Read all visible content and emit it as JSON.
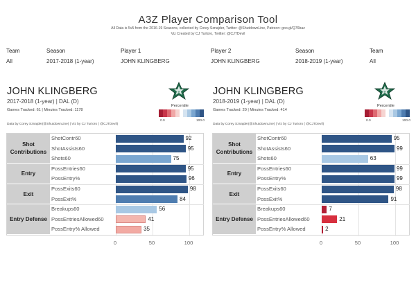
{
  "title": "A3Z Player Comparison Tool",
  "subtitle_line1": "All Data is 5v5 from the 2016-19 Seasons, collected by Corey Sznajder, Twitter: @ShutdownLine, Patreon: goo.gl/Q76baz",
  "subtitle_line2": "Viz Created by CJ Turtoro, Twitter: @CJTDevil",
  "filters": [
    {
      "label": "Team",
      "value": "All"
    },
    {
      "label": "Season",
      "value": "2017-2018 (1-year)"
    },
    {
      "label": "Player 1",
      "value": "JOHN KLINGBERG"
    },
    {
      "label": "Player 2",
      "value": "JOHN KLINGBERG"
    },
    {
      "label": "Season",
      "value": "2018-2019 (1-year)"
    },
    {
      "label": "Team",
      "value": "All"
    }
  ],
  "legend": {
    "title": "Percentile",
    "min_label": "0.0",
    "max_label": "100.0"
  },
  "colors": {
    "bar_high": "#2f5586",
    "bar_mid_high": "#5a8cc0",
    "bar_light": "#a8c8e4",
    "bar_low_pink": "#f2aaa3",
    "bar_very_low": "#c0273a",
    "bar_low_red": "#d7303f",
    "group_bg": "#cfcfcf",
    "logo_green": "#1f6b4a"
  },
  "panels": [
    {
      "player": "JOHN KLINGBERG",
      "season_line": "2017-2018 (1-year) | DAL (D)",
      "games_line": "Games Tracked: 61  | Minutes Tracked: 1178",
      "credit": "Data by Corey Sznajder(@ShutdownLine) | Viz by CJ Turtoro ( @CJTDevil)",
      "logo_icon": "dallas-stars-logo",
      "groups": [
        {
          "name": "Shot Contributions",
          "metrics": [
            {
              "label": "ShotContr60",
              "value": 92,
              "color": "#2f5586"
            },
            {
              "label": "ShotAssists60",
              "value": 95,
              "color": "#2f5586"
            },
            {
              "label": "Shots60",
              "value": 75,
              "color": "#7aa6d0"
            }
          ]
        },
        {
          "name": "Entry",
          "metrics": [
            {
              "label": "PossEntries60",
              "value": 95,
              "color": "#2f5586"
            },
            {
              "label": "PossEntry%",
              "value": 96,
              "color": "#2f5586"
            }
          ]
        },
        {
          "name": "Exit",
          "metrics": [
            {
              "label": "PossExits60",
              "value": 98,
              "color": "#2f5586"
            },
            {
              "label": "PossExit%",
              "value": 84,
              "color": "#4f7db0"
            }
          ]
        },
        {
          "name": "Entry Defense",
          "metrics": [
            {
              "label": "Breakups60",
              "value": 56,
              "color": "#a8c8e4"
            },
            {
              "label": "PossEntriesAllowed60",
              "value": 41,
              "color": "#f4b6ae"
            },
            {
              "label": "PossEntry% Allowed",
              "value": 35,
              "color": "#f2aaa3"
            }
          ]
        }
      ],
      "x_ticks": [
        "0",
        "50",
        "100"
      ]
    },
    {
      "player": "JOHN KLINGBERG",
      "season_line": "2018-2019 (1-year) | DAL (D)",
      "games_line": "Games Tracked: 20  | Minutes Tracked: 414",
      "credit": "Data by Corey Sznajder(@ShutdownLine) | Viz by CJ Turtoro ( @CJTDevil)",
      "logo_icon": "dallas-stars-logo",
      "groups": [
        {
          "name": "Shot Contributions",
          "metrics": [
            {
              "label": "ShotContr60",
              "value": 95,
              "color": "#2f5586"
            },
            {
              "label": "ShotAssists60",
              "value": 99,
              "color": "#2f5586"
            },
            {
              "label": "Shots60",
              "value": 63,
              "color": "#a8c8e4"
            }
          ]
        },
        {
          "name": "Entry",
          "metrics": [
            {
              "label": "PossEntries60",
              "value": 99,
              "color": "#2f5586"
            },
            {
              "label": "PossEntry%",
              "value": 99,
              "color": "#2f5586"
            }
          ]
        },
        {
          "name": "Exit",
          "metrics": [
            {
              "label": "PossExits60",
              "value": 98,
              "color": "#2f5586"
            },
            {
              "label": "PossExit%",
              "value": 91,
              "color": "#2f5586"
            }
          ]
        },
        {
          "name": "Entry Defense",
          "metrics": [
            {
              "label": "Breakups60",
              "value": 7,
              "color": "#b31f35"
            },
            {
              "label": "PossEntriesAllowed60",
              "value": 21,
              "color": "#d7303f"
            },
            {
              "label": "PossEntry% Allowed",
              "value": 2,
              "color": "#b31f35"
            }
          ]
        }
      ],
      "x_ticks": [
        "0",
        "50",
        "100"
      ]
    }
  ]
}
